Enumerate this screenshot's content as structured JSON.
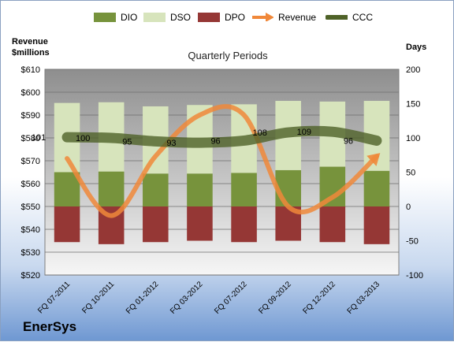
{
  "company": "EnerSys",
  "chart_data": {
    "type": "bar",
    "title": "Quarterly Periods",
    "y_left_label_line1": "Revenue",
    "y_left_label_line2": "$millions",
    "y_right_label": "Days",
    "categories": [
      "FQ 07-2011",
      "FQ 10-2011",
      "FQ 01-2012",
      "FQ 03-2012",
      "FQ 07-2012",
      "FQ 09-2012",
      "FQ 12-2012",
      "FQ 03-2013"
    ],
    "y_left_ticks": [
      "$520",
      "$530",
      "$540",
      "$550",
      "$560",
      "$570",
      "$580",
      "$590",
      "$600",
      "$610"
    ],
    "y_left_range": [
      520,
      610
    ],
    "y_right_ticks": [
      "200",
      "150",
      "100",
      "50",
      "0",
      "-50",
      "-100"
    ],
    "y_right_range": [
      -100,
      200
    ],
    "series": [
      {
        "name": "DIO",
        "kind": "bar",
        "color": "#77933c",
        "values": [
          50,
          51,
          48,
          48,
          49,
          53,
          58,
          52
        ]
      },
      {
        "name": "DSO",
        "kind": "bar",
        "color": "#d7e4bc",
        "values": [
          101,
          101,
          98,
          100,
          100,
          101,
          95,
          102
        ]
      },
      {
        "name": "DPO",
        "kind": "bar",
        "color": "#953735",
        "values": [
          -52,
          -55,
          -52,
          -50,
          -52,
          -50,
          -52,
          -55
        ]
      },
      {
        "name": "Revenue",
        "kind": "line",
        "axis": "left",
        "color": "#f0883a",
        "values": [
          571,
          546,
          572,
          590,
          590,
          550,
          554,
          572
        ]
      },
      {
        "name": "CCC",
        "kind": "line",
        "axis": "right",
        "color": "#4f6228",
        "values": [
          101,
          100,
          95,
          93,
          96,
          108,
          109,
          96
        ]
      }
    ],
    "ccc_labels": [
      "101",
      "100",
      "95",
      "93",
      "96",
      "108",
      "109",
      "96"
    ],
    "grid": true,
    "legend_position": "top"
  }
}
